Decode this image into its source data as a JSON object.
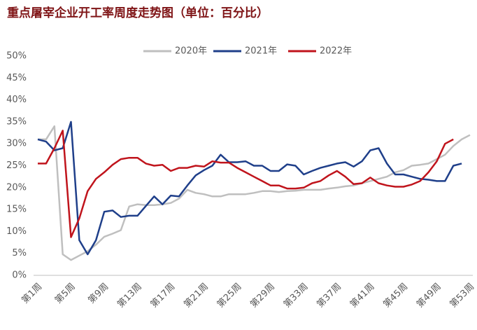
{
  "chart_data": {
    "type": "line",
    "title": "重点屠宰企业开工率周度走势图（单位：百分比）",
    "categories": [
      "第1周",
      null,
      null,
      null,
      "第5周",
      null,
      null,
      null,
      "第9周",
      null,
      null,
      null,
      "第13周",
      null,
      null,
      null,
      "第17周",
      null,
      null,
      null,
      "第21周",
      null,
      null,
      null,
      "第25周",
      null,
      null,
      null,
      "第29周",
      null,
      null,
      null,
      "第33周",
      null,
      null,
      null,
      "第37周",
      null,
      null,
      null,
      "第41周",
      null,
      null,
      null,
      "第45周",
      null,
      null,
      null,
      "第49周",
      null,
      null,
      null,
      "第53周"
    ],
    "series": [
      {
        "name": "2020年",
        "color": "#bfbfbf",
        "values": [
          31,
          31,
          34,
          4.8,
          3.5,
          4.5,
          5.5,
          7,
          8.8,
          9.5,
          10.3,
          15.7,
          16.2,
          16,
          16,
          16.2,
          16.5,
          17.5,
          19.5,
          18.8,
          18.5,
          18,
          18,
          18.5,
          18.5,
          18.5,
          18.8,
          19.2,
          19.2,
          19,
          19.2,
          19.3,
          19.5,
          19.5,
          19.5,
          19.8,
          20,
          20.3,
          20.5,
          21,
          21.5,
          22,
          22.5,
          23.5,
          24,
          25,
          25.2,
          25.5,
          26.5,
          27.5,
          29.5,
          31,
          32
        ]
      },
      {
        "name": "2021年",
        "color": "#1f3f8a",
        "values": [
          31,
          30.5,
          28.5,
          29,
          35,
          8,
          4.8,
          8,
          14.5,
          14.8,
          13.3,
          13.6,
          13.6,
          15.8,
          18,
          16.2,
          18.2,
          18,
          20.5,
          22.8,
          24,
          25,
          27.5,
          25.8,
          25.8,
          26,
          25,
          25,
          23.8,
          23.8,
          25.3,
          25,
          23,
          23.8,
          24.5,
          25,
          25.5,
          25.8,
          24.8,
          26,
          28.5,
          29,
          25.5,
          23,
          23,
          22.5,
          22,
          21.8,
          21.5,
          21.5,
          25,
          25.5,
          null
        ]
      },
      {
        "name": "2022年",
        "color": "#c0141c",
        "values": [
          25.5,
          25.5,
          29,
          33,
          8.7,
          13,
          19.2,
          22,
          23.5,
          25.2,
          26.5,
          26.8,
          26.8,
          25.5,
          25,
          25.2,
          23.8,
          24.5,
          24.5,
          25,
          24.8,
          26,
          25.7,
          25.7,
          24.5,
          23.5,
          22.5,
          21.5,
          20.5,
          20.5,
          19.8,
          19.8,
          20,
          21,
          21.5,
          22.8,
          23.8,
          22.5,
          20.8,
          21,
          22.3,
          21,
          20.5,
          20.2,
          20.2,
          20.7,
          21.5,
          23.5,
          26,
          30,
          31,
          null,
          null
        ]
      }
    ],
    "ylim": [
      0,
      50
    ],
    "yticks": [
      {
        "value": 0,
        "label": "0%"
      },
      {
        "value": 5,
        "label": "5%"
      },
      {
        "value": 10,
        "label": "10%"
      },
      {
        "value": 15,
        "label": "15%"
      },
      {
        "value": 20,
        "label": "20%"
      },
      {
        "value": 25,
        "label": "25%"
      },
      {
        "value": 30,
        "label": "30%"
      },
      {
        "value": 35,
        "label": "35%"
      },
      {
        "value": 40,
        "label": "40%"
      },
      {
        "value": 45,
        "label": "45%"
      },
      {
        "value": 50,
        "label": "50%"
      }
    ],
    "grid": false,
    "legend": "top"
  }
}
